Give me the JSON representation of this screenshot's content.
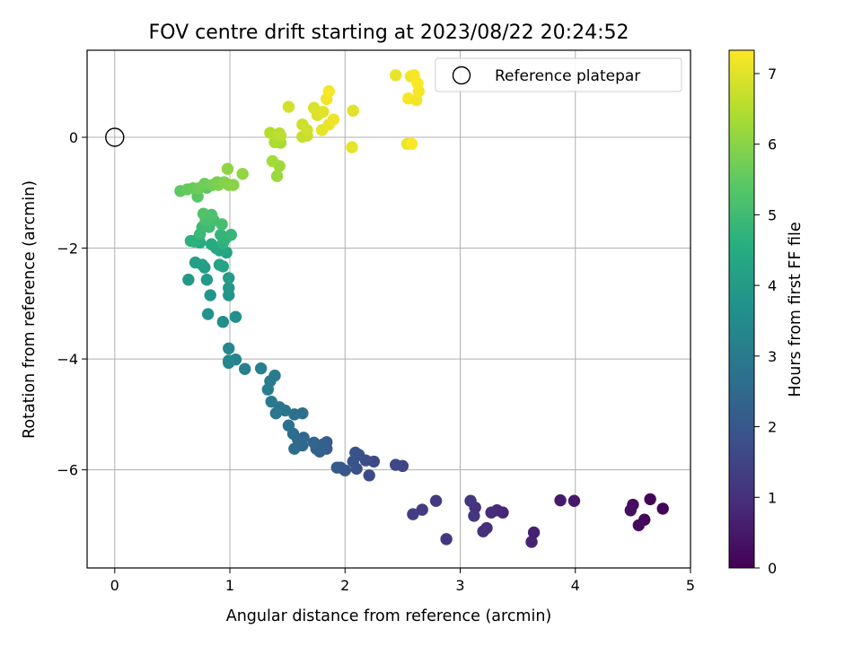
{
  "chart_data": {
    "type": "scatter",
    "title": "FOV centre drift starting at 2023/08/22 20:24:52",
    "xlabel": "Angular distance from reference (arcmin)",
    "ylabel": "Rotation from reference (arcmin)",
    "xlim": [
      -0.24,
      5.0
    ],
    "ylim": [
      -7.77,
      1.57
    ],
    "xticks": [
      0,
      1,
      2,
      3,
      4,
      5
    ],
    "xtick_labels": [
      "0",
      "1",
      "2",
      "3",
      "4",
      "5"
    ],
    "yticks": [
      0,
      -2,
      -4,
      -6
    ],
    "ytick_labels": [
      "0",
      "−2",
      "−4",
      "−6"
    ],
    "grid": true,
    "colormap": "viridis",
    "colorbar": {
      "label": "Hours from first FF file",
      "range": [
        0,
        7.33
      ],
      "ticks": [
        0,
        1,
        2,
        3,
        4,
        5,
        6,
        7
      ],
      "tick_labels": [
        "0",
        "1",
        "2",
        "3",
        "4",
        "5",
        "6",
        "7"
      ]
    },
    "reference": {
      "label": "Reference platepar",
      "x": 0.0,
      "y": 0.0
    },
    "legend_position": "top-right",
    "points": [
      [
        4.76,
        -6.7,
        0.05
      ],
      [
        4.65,
        -6.53,
        0.1
      ],
      [
        4.6,
        -6.9,
        0.15
      ],
      [
        4.55,
        -7.0,
        0.2
      ],
      [
        4.5,
        -6.63,
        0.25
      ],
      [
        4.48,
        -6.73,
        0.3
      ],
      [
        3.99,
        -6.56,
        0.5
      ],
      [
        3.87,
        -6.55,
        0.55
      ],
      [
        3.64,
        -7.13,
        0.65
      ],
      [
        3.62,
        -7.3,
        0.7
      ],
      [
        3.37,
        -6.77,
        0.8
      ],
      [
        3.32,
        -6.73,
        0.85
      ],
      [
        3.27,
        -6.77,
        0.9
      ],
      [
        3.23,
        -7.05,
        0.95
      ],
      [
        3.2,
        -7.11,
        1.0
      ],
      [
        3.13,
        -6.68,
        1.05
      ],
      [
        3.12,
        -6.83,
        1.1
      ],
      [
        3.09,
        -6.56,
        1.15
      ],
      [
        2.88,
        -7.25,
        1.2
      ],
      [
        2.79,
        -6.56,
        1.25
      ],
      [
        2.67,
        -6.72,
        1.3
      ],
      [
        2.59,
        -6.8,
        1.35
      ],
      [
        2.5,
        -5.93,
        1.5
      ],
      [
        2.44,
        -5.91,
        1.55
      ],
      [
        2.25,
        -5.85,
        1.6
      ],
      [
        2.21,
        -6.1,
        1.65
      ],
      [
        2.18,
        -5.83,
        1.7
      ],
      [
        2.12,
        -5.73,
        1.75
      ],
      [
        2.1,
        -5.98,
        1.8
      ],
      [
        2.09,
        -5.69,
        1.85
      ],
      [
        2.07,
        -5.85,
        1.9
      ],
      [
        2.0,
        -6.01,
        1.95
      ],
      [
        1.96,
        -5.96,
        2.0
      ],
      [
        1.93,
        -5.96,
        2.05
      ],
      [
        1.84,
        -5.5,
        2.1
      ],
      [
        1.84,
        -5.62,
        2.15
      ],
      [
        1.81,
        -5.54,
        2.2
      ],
      [
        1.78,
        -5.67,
        2.25
      ],
      [
        1.75,
        -5.62,
        2.3
      ],
      [
        1.73,
        -5.51,
        2.35
      ],
      [
        1.64,
        -5.42,
        2.4
      ],
      [
        1.63,
        -5.56,
        2.45
      ],
      [
        1.59,
        -5.45,
        2.5
      ],
      [
        1.56,
        -5.62,
        2.55
      ],
      [
        1.55,
        -5.35,
        2.6
      ],
      [
        1.63,
        -4.98,
        2.65
      ],
      [
        1.56,
        -5.0,
        2.7
      ],
      [
        1.51,
        -5.2,
        2.75
      ],
      [
        1.48,
        -4.93,
        2.8
      ],
      [
        1.43,
        -4.87,
        2.85
      ],
      [
        1.4,
        -4.98,
        2.9
      ],
      [
        1.36,
        -4.77,
        2.95
      ],
      [
        1.39,
        -4.3,
        3.0
      ],
      [
        1.35,
        -4.4,
        3.05
      ],
      [
        1.33,
        -4.55,
        3.1
      ],
      [
        1.27,
        -4.17,
        3.15
      ],
      [
        1.13,
        -4.18,
        3.2
      ],
      [
        1.05,
        -4.01,
        3.25
      ],
      [
        0.99,
        -4.07,
        3.3
      ],
      [
        0.99,
        -4.03,
        3.35
      ],
      [
        0.99,
        -3.81,
        3.4
      ],
      [
        0.94,
        -3.33,
        3.6
      ],
      [
        1.05,
        -3.24,
        3.65
      ],
      [
        0.81,
        -3.19,
        3.7
      ],
      [
        0.83,
        -2.85,
        3.75
      ],
      [
        0.99,
        -2.85,
        3.8
      ],
      [
        0.99,
        -2.72,
        3.85
      ],
      [
        0.64,
        -2.57,
        3.9
      ],
      [
        0.8,
        -2.57,
        3.95
      ],
      [
        0.99,
        -2.54,
        4.0
      ],
      [
        0.78,
        -2.35,
        4.05
      ],
      [
        0.76,
        -2.3,
        4.1
      ],
      [
        0.7,
        -2.26,
        4.15
      ],
      [
        0.94,
        -2.33,
        4.2
      ],
      [
        0.91,
        -2.3,
        4.25
      ],
      [
        0.97,
        -2.08,
        4.3
      ],
      [
        0.91,
        -2.04,
        4.35
      ],
      [
        0.88,
        -2.0,
        4.4
      ],
      [
        0.84,
        -1.93,
        4.45
      ],
      [
        0.74,
        -1.9,
        4.5
      ],
      [
        0.72,
        -1.84,
        4.55
      ],
      [
        0.69,
        -1.88,
        4.6
      ],
      [
        0.66,
        -1.87,
        4.65
      ],
      [
        0.94,
        -1.91,
        4.7
      ],
      [
        0.97,
        -1.81,
        4.75
      ],
      [
        0.92,
        -1.76,
        4.8
      ],
      [
        1.01,
        -1.76,
        4.85
      ],
      [
        0.74,
        -1.75,
        4.9
      ],
      [
        0.76,
        -1.62,
        4.95
      ],
      [
        0.82,
        -1.62,
        5.0
      ],
      [
        0.86,
        -1.5,
        5.05
      ],
      [
        0.93,
        -1.57,
        5.1
      ],
      [
        0.79,
        -1.5,
        5.15
      ],
      [
        0.84,
        -1.4,
        5.2
      ],
      [
        0.77,
        -1.38,
        5.25
      ],
      [
        0.72,
        -1.07,
        5.4
      ],
      [
        0.8,
        -0.91,
        5.45
      ],
      [
        0.57,
        -0.97,
        5.5
      ],
      [
        0.63,
        -0.94,
        5.55
      ],
      [
        0.68,
        -0.92,
        5.6
      ],
      [
        0.73,
        -0.92,
        5.65
      ],
      [
        0.78,
        -0.84,
        5.7
      ],
      [
        0.85,
        -0.86,
        5.75
      ],
      [
        0.89,
        -0.81,
        5.8
      ],
      [
        0.9,
        -0.86,
        5.85
      ],
      [
        0.95,
        -0.81,
        5.9
      ],
      [
        0.99,
        -0.86,
        5.95
      ],
      [
        1.03,
        -0.86,
        6.0
      ],
      [
        0.98,
        -0.57,
        6.05
      ],
      [
        1.11,
        -0.66,
        6.1
      ],
      [
        1.41,
        -0.7,
        6.2
      ],
      [
        1.43,
        -0.52,
        6.25
      ],
      [
        1.37,
        -0.43,
        6.3
      ],
      [
        1.44,
        -0.1,
        6.35
      ],
      [
        1.39,
        -0.09,
        6.4
      ],
      [
        1.4,
        0.02,
        6.45
      ],
      [
        1.35,
        0.08,
        6.5
      ],
      [
        1.43,
        0.07,
        6.55
      ],
      [
        1.44,
        0.03,
        6.6
      ],
      [
        1.63,
        0.01,
        6.65
      ],
      [
        1.67,
        0.03,
        6.7
      ],
      [
        1.63,
        0.23,
        6.75
      ],
      [
        1.67,
        0.13,
        6.8
      ],
      [
        1.51,
        0.55,
        6.85
      ],
      [
        1.73,
        0.53,
        6.9
      ],
      [
        1.76,
        0.4,
        6.95
      ],
      [
        1.81,
        0.46,
        7.0
      ],
      [
        1.8,
        0.13,
        7.05
      ],
      [
        1.86,
        0.23,
        7.1
      ],
      [
        1.9,
        0.32,
        7.15
      ],
      [
        1.84,
        0.69,
        7.2
      ],
      [
        1.86,
        0.83,
        7.25
      ],
      [
        2.07,
        0.48,
        7.0
      ],
      [
        2.06,
        -0.18,
        7.05
      ],
      [
        2.44,
        1.12,
        7.1
      ],
      [
        2.54,
        -0.12,
        7.15
      ],
      [
        2.57,
        1.1,
        7.2
      ],
      [
        2.6,
        1.12,
        7.25
      ],
      [
        2.55,
        0.7,
        7.25
      ],
      [
        2.62,
        0.67,
        7.2
      ],
      [
        2.63,
        0.97,
        7.3
      ],
      [
        2.64,
        0.83,
        7.25
      ],
      [
        2.58,
        -0.12,
        7.3
      ]
    ]
  }
}
